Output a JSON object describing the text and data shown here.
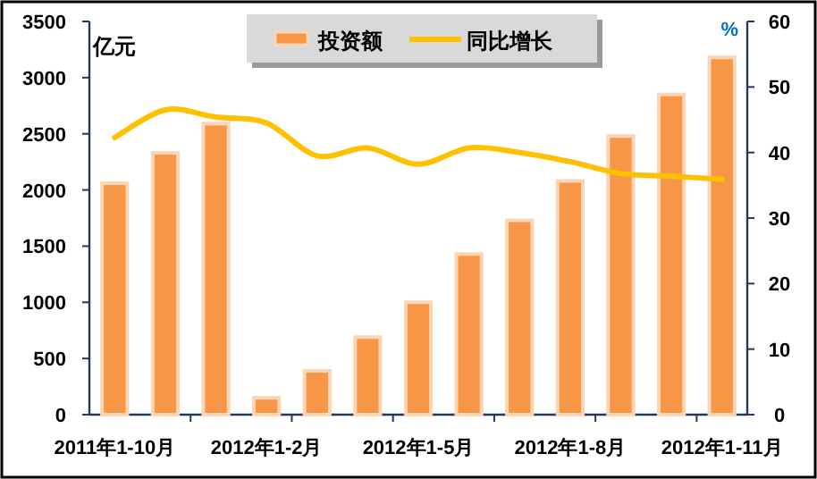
{
  "chart_data": {
    "type": "bar",
    "categories": [
      "2011年1-10月",
      null,
      null,
      "2012年1-2月",
      null,
      null,
      "2012年1-5月",
      null,
      null,
      "2012年1-8月",
      null,
      null,
      "2012年1-11月"
    ],
    "series": [
      {
        "name": "投资额",
        "color": "#f79646",
        "values": [
          2060,
          2330,
          2590,
          150,
          390,
          690,
          1000,
          1430,
          1730,
          2080,
          2480,
          2850,
          3180
        ]
      },
      {
        "name": "同比增长",
        "type": "line",
        "axis": "y2",
        "color": "#ffc000",
        "values": [
          42.3,
          46.5,
          45.4,
          44.5,
          39.5,
          40.7,
          38.2,
          40.7,
          40.0,
          38.6,
          36.8,
          36.4,
          35.9
        ]
      }
    ],
    "ylabel": "亿元",
    "y2label": "%",
    "ylim": [
      0,
      3500
    ],
    "yticks": [
      0,
      500,
      1000,
      1500,
      2000,
      2500,
      3000,
      3500
    ],
    "y2lim": [
      0,
      60
    ],
    "y2ticks": [
      0,
      10,
      20,
      30,
      40,
      50,
      60
    ],
    "legend": "top",
    "grid": false
  }
}
